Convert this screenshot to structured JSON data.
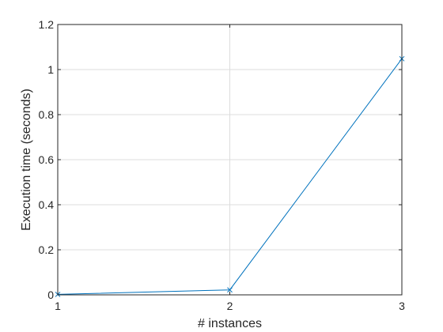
{
  "chart_data": {
    "type": "line",
    "title": "",
    "xlabel": "# instances",
    "ylabel": "Execution time (seconds)",
    "xlim": [
      1,
      3
    ],
    "ylim": [
      0,
      1.2
    ],
    "xticks": [
      "1",
      "2",
      "3"
    ],
    "yticks": [
      "0",
      "0.2",
      "0.4",
      "0.6",
      "0.8",
      "1",
      "1.2"
    ],
    "grid": true,
    "series": [
      {
        "x": [
          1,
          2,
          3
        ],
        "y": [
          0.002,
          0.022,
          1.048
        ],
        "marker": "x",
        "color": "#0072BD"
      }
    ]
  }
}
